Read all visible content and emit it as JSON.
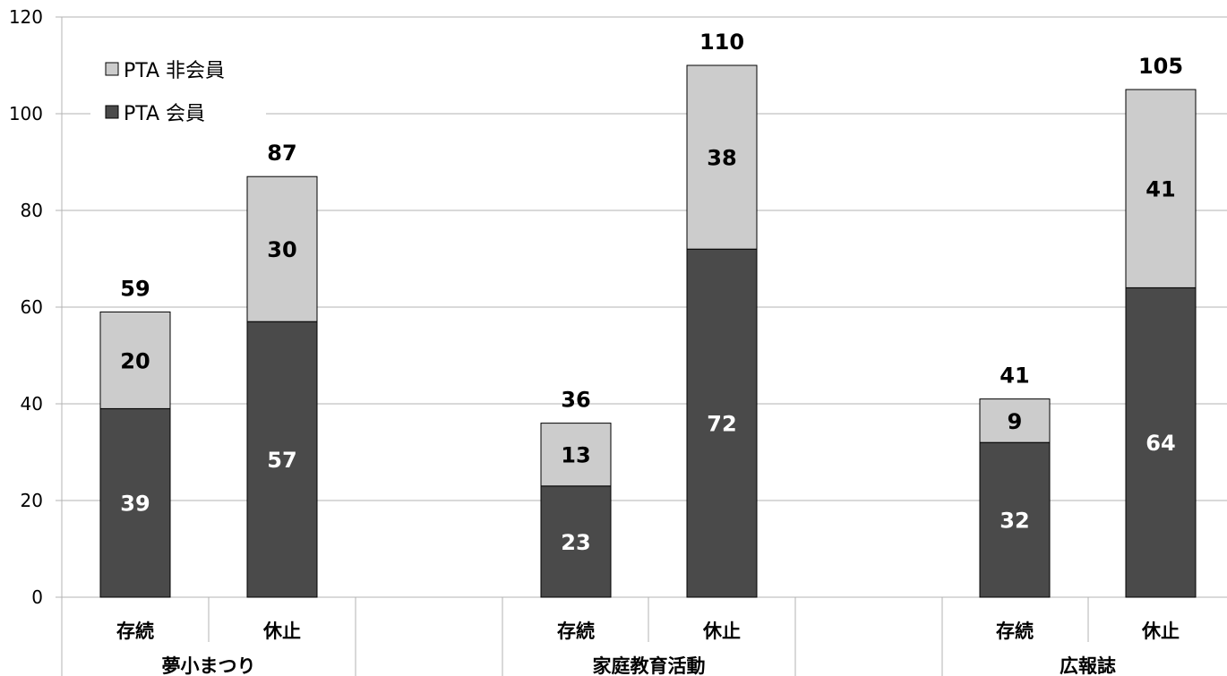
{
  "chart_data": {
    "type": "bar",
    "stacked": true,
    "ylim": [
      0,
      120
    ],
    "yticks": [
      0,
      20,
      40,
      60,
      80,
      100,
      120
    ],
    "grid": true,
    "legend_position": "top-left",
    "groups": [
      {
        "name": "夢小まつり",
        "categories": [
          "存続",
          "休止"
        ]
      },
      {
        "name": "家庭教育活動",
        "categories": [
          "存続",
          "休止"
        ]
      },
      {
        "name": "広報誌",
        "categories": [
          "存続",
          "休止"
        ]
      }
    ],
    "series": [
      {
        "name": "PTA 会員",
        "color": "#4a4a4a",
        "label_color": "#ffffff",
        "values": [
          39,
          57,
          23,
          72,
          32,
          64
        ]
      },
      {
        "name": "PTA 非会員",
        "color": "#cccccc",
        "label_color": "#000000",
        "values": [
          20,
          30,
          13,
          38,
          9,
          41
        ]
      }
    ],
    "totals": [
      59,
      87,
      36,
      110,
      41,
      105
    ]
  }
}
